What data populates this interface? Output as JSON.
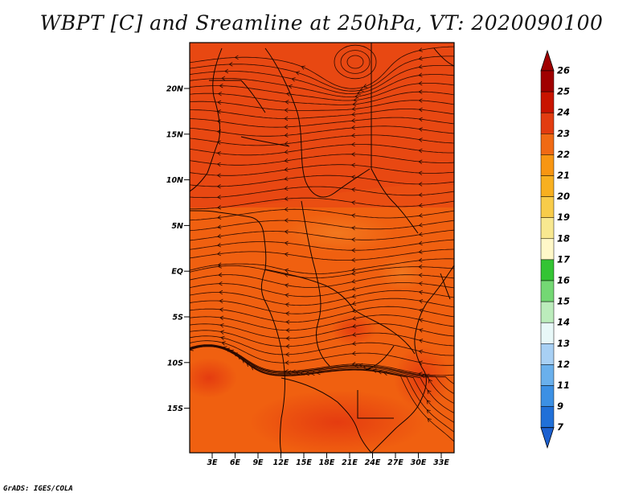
{
  "title": "WBPT [C] and Sreamline at 250hPa, VT: 2020090100",
  "credit": "GrADS: IGES/COLA",
  "map": {
    "lat_labels": [
      "20N",
      "15N",
      "10N",
      "5N",
      "EQ",
      "5S",
      "10S",
      "15S"
    ],
    "lon_labels": [
      "3E",
      "6E",
      "9E",
      "12E",
      "15E",
      "18E",
      "21E",
      "24E",
      "27E",
      "30E",
      "33E"
    ],
    "colors": {
      "field_base": "#f06010",
      "field_warm": "#e84a10",
      "field_hot": "#e43a10",
      "streamline": "#2a0a00",
      "coast": "#150500"
    }
  },
  "colorbar": {
    "labels": [
      "26",
      "25",
      "24",
      "23",
      "22",
      "21",
      "20",
      "19",
      "18",
      "17",
      "16",
      "15",
      "14",
      "13",
      "12",
      "11",
      "9",
      "7"
    ],
    "colors": [
      "#a00000",
      "#c81400",
      "#e23c10",
      "#f06a14",
      "#f89612",
      "#f8b020",
      "#f8cc4a",
      "#f8e890",
      "#fff8c8",
      "#34c434",
      "#74d874",
      "#bcecbc",
      "#e8f8f8",
      "#a8d0f4",
      "#6ab0ec",
      "#3c90e4",
      "#2070d8"
    ],
    "top_arrow_color": "#a00000",
    "bottom_arrow_color": "#1c60d0"
  }
}
